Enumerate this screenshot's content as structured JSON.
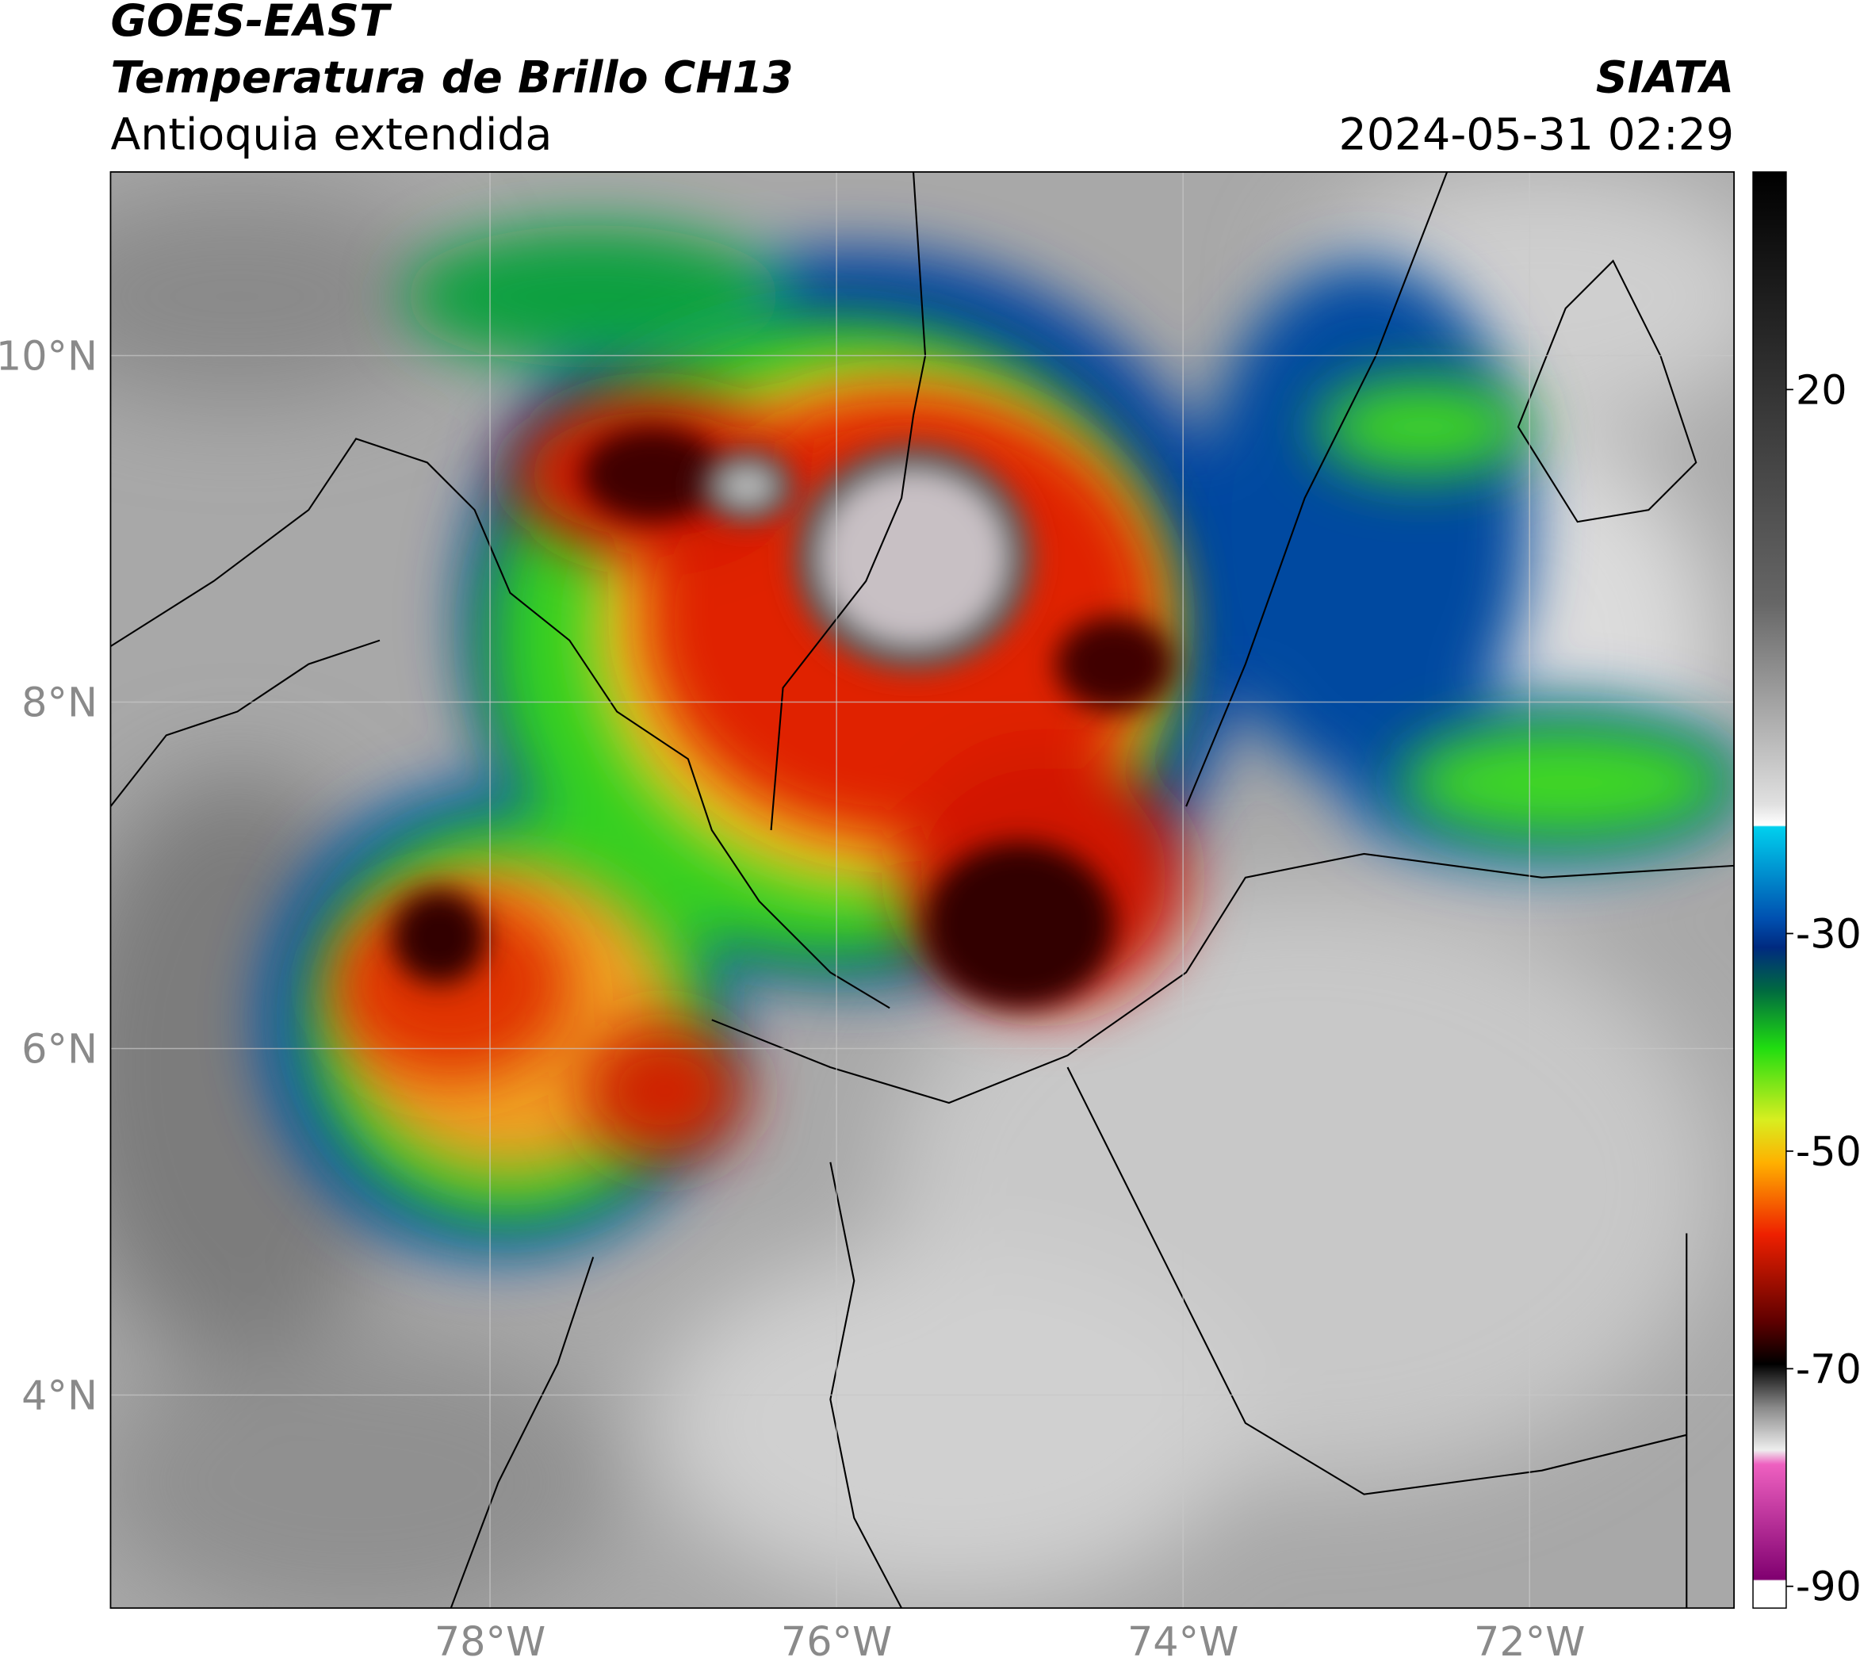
{
  "header": {
    "title": "GOES-EAST",
    "subtitle": "Temperatura de Brillo CH13",
    "region": "Antioquia extendida",
    "source": "SIATA",
    "datetime": "2024-05-31 02:29"
  },
  "map": {
    "xlim": [
      -80.19,
      -70.82
    ],
    "ylim": [
      2.77,
      11.06
    ],
    "xticks": [
      {
        "value": -78,
        "label": "78°W"
      },
      {
        "value": -76,
        "label": "76°W"
      },
      {
        "value": -74,
        "label": "74°W"
      },
      {
        "value": -72,
        "label": "72°W"
      }
    ],
    "yticks": [
      {
        "value": 10,
        "label": "10°N"
      },
      {
        "value": 8,
        "label": "8°N"
      },
      {
        "value": 6,
        "label": "6°N"
      },
      {
        "value": 4,
        "label": "4°N"
      }
    ],
    "grid": true
  },
  "colorbar": {
    "lim": [
      -92,
      40
    ],
    "ticks": [
      20,
      -30,
      -50,
      -70,
      -90
    ]
  }
}
